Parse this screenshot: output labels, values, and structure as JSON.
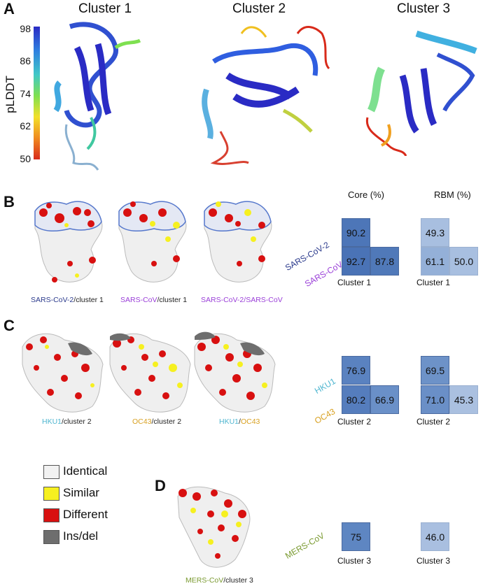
{
  "panels": {
    "a": "A",
    "b": "B",
    "c": "C",
    "d": "D"
  },
  "panel_a": {
    "titles": [
      "Cluster 1",
      "Cluster 2",
      "Cluster 3"
    ],
    "colorbar": {
      "label": "pLDDT",
      "ticks": [
        "98",
        "86",
        "74",
        "62",
        "50"
      ],
      "colors": [
        "#2a2bc4",
        "#2f7fe0",
        "#40c8c8",
        "#7ee050",
        "#f2e02a",
        "#f08a20",
        "#d82a1a"
      ]
    }
  },
  "panel_b": {
    "captions": [
      {
        "parts": [
          {
            "text": "SARS-CoV-2",
            "color": "#2b3a8c"
          },
          {
            "text": "/cluster 1",
            "color": "#222222"
          }
        ]
      },
      {
        "parts": [
          {
            "text": "SARS-CoV",
            "color": "#9a3fd8"
          },
          {
            "text": "/cluster 1",
            "color": "#222222"
          }
        ]
      },
      {
        "parts": [
          {
            "text": "SARS-CoV-2",
            "color": "#9a3fd8"
          },
          {
            "text": "/",
            "color": "#9a3fd8"
          },
          {
            "text": "SARS-CoV",
            "color": "#9a3fd8"
          }
        ]
      }
    ],
    "core_head": "Core (%)",
    "rbm_head": "RBM (%)",
    "row_labels": [
      {
        "text": "SARS-CoV-2",
        "color": "#2b3a8c"
      },
      {
        "text": "SARS-CoV",
        "color": "#9a3fd8"
      }
    ],
    "core": {
      "top": "90.2",
      "bottom_left": "92.7",
      "bottom_right": "87.8",
      "xlabel": "Cluster 1"
    },
    "rbm": {
      "top": "49.3",
      "bottom_left": "61.1",
      "bottom_right": "50.0",
      "xlabel": "Cluster 1"
    }
  },
  "panel_c": {
    "captions": [
      {
        "parts": [
          {
            "text": "HKU1",
            "color": "#4fb6d0"
          },
          {
            "text": "/cluster 2",
            "color": "#222222"
          }
        ]
      },
      {
        "parts": [
          {
            "text": "OC43",
            "color": "#d8a020"
          },
          {
            "text": "/cluster 2",
            "color": "#222222"
          }
        ]
      },
      {
        "parts": [
          {
            "text": "HKU1",
            "color": "#4fb6d0"
          },
          {
            "text": "/",
            "color": "#222222"
          },
          {
            "text": "OC43",
            "color": "#d8a020"
          }
        ]
      }
    ],
    "row_labels": [
      {
        "text": "HKU1",
        "color": "#4fb6d0"
      },
      {
        "text": "OC43",
        "color": "#d8a020"
      }
    ],
    "core": {
      "top": "76.9",
      "bottom_left": "80.2",
      "bottom_right": "66.9",
      "xlabel": "Cluster 2"
    },
    "rbm": {
      "top": "69.5",
      "bottom_left": "71.0",
      "bottom_right": "45.3",
      "xlabel": "Cluster 2"
    }
  },
  "legend": [
    {
      "label": "Identical",
      "color": "#f2f2f2"
    },
    {
      "label": "Similar",
      "color": "#f6f020"
    },
    {
      "label": "Different",
      "color": "#d81010"
    },
    {
      "label": "Ins/del",
      "color": "#6e6e6e"
    }
  ],
  "panel_d": {
    "caption": [
      {
        "text": "MERS-CoV",
        "color": "#7a9a30"
      },
      {
        "text": "/cluster 3",
        "color": "#222222"
      }
    ],
    "row_label": {
      "text": "MERS-CoV",
      "color": "#7a9a30"
    },
    "core": {
      "value": "75",
      "xlabel": "Cluster 3"
    },
    "rbm": {
      "value": "46.0",
      "xlabel": "Cluster 3"
    }
  }
}
